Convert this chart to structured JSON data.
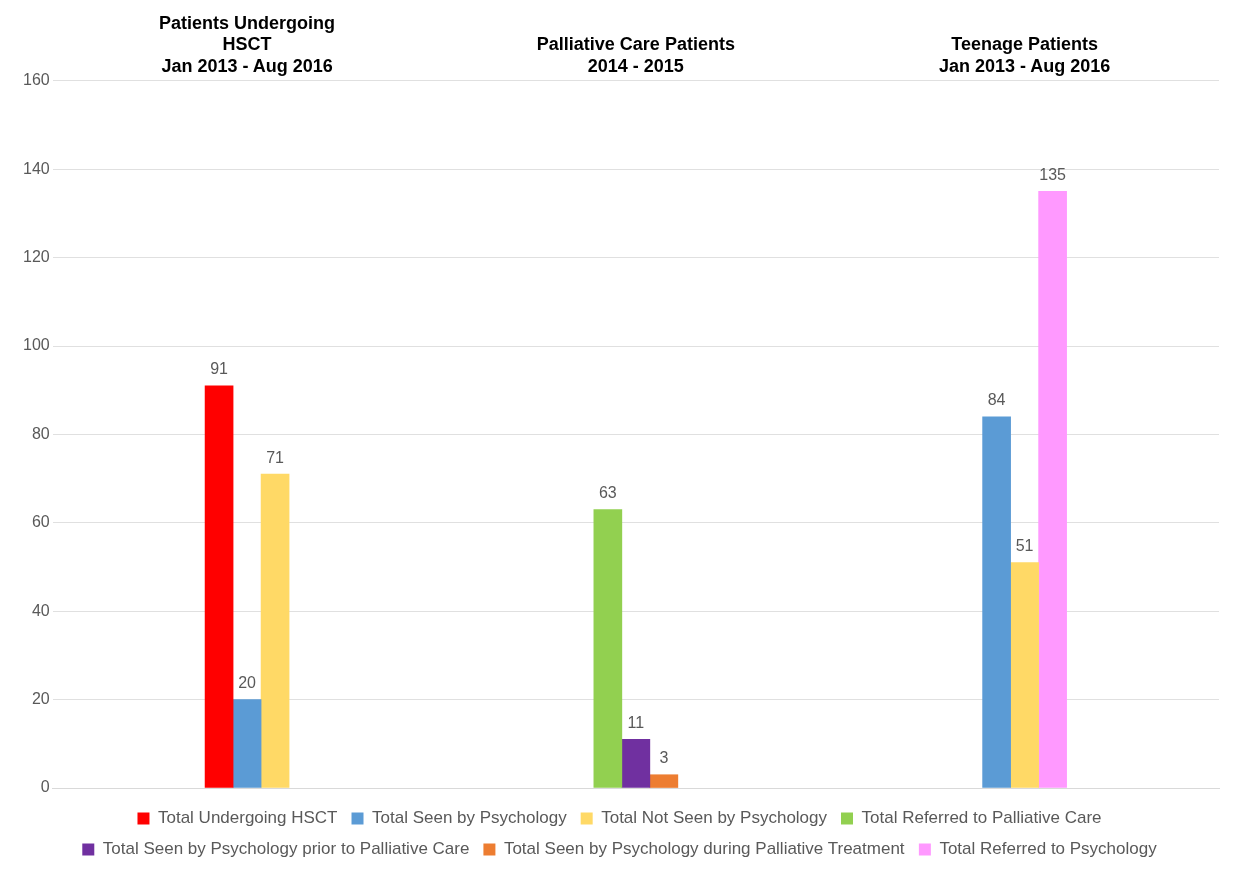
{
  "chart_data": {
    "type": "bar",
    "categories": [
      "Patients Undergoing\nHSCT\nJan 2013 - Aug 2016",
      "Palliative Care Patients\n2014 - 2015",
      "Teenage Patients\nJan 2013 - Aug 2016"
    ],
    "series": [
      {
        "name": "Total Undergoing HSCT",
        "color": "#ff0000",
        "values": [
          91,
          null,
          null
        ]
      },
      {
        "name": "Total Seen by Psychology",
        "color": "#5b9bd5",
        "values": [
          20,
          null,
          84
        ]
      },
      {
        "name": "Total Not Seen by Psychology",
        "color": "#ffd966",
        "values": [
          71,
          null,
          51
        ]
      },
      {
        "name": "Total Referred to Palliative Care",
        "color": "#92d050",
        "values": [
          null,
          63,
          null
        ]
      },
      {
        "name": "Total Seen by Psychology prior to Palliative Care",
        "color": "#7030a0",
        "values": [
          null,
          11,
          null
        ]
      },
      {
        "name": "Total Seen by Psychology during Palliative Treatment",
        "color": "#ed7d31",
        "values": [
          null,
          3,
          null
        ]
      },
      {
        "name": "Total Referred to Psychology",
        "color": "#ff99ff",
        "values": [
          null,
          null,
          135
        ]
      }
    ],
    "ylim": [
      0,
      160
    ],
    "yticks": [
      0,
      20,
      40,
      60,
      80,
      100,
      120,
      140,
      160
    ],
    "grid": "y",
    "legend": "bottom",
    "data_labels": true
  }
}
